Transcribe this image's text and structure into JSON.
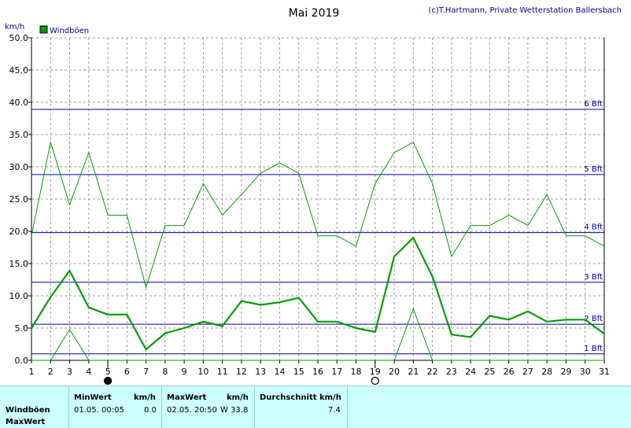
{
  "header": {
    "title": "Mai 2019",
    "credit": "(c)T.Hartmann, Private Wetterstation Ballersbach",
    "unit_label": "km/h"
  },
  "legend": {
    "label": "Windböen",
    "color": "#00a000"
  },
  "colors": {
    "series": "#00a000",
    "beaufort_lines": "#00009c",
    "grid": "#9c9c9c",
    "stats_bg": "#ccffff"
  },
  "chart_data": {
    "type": "line",
    "title": "Mai 2019",
    "ylabel": "km/h",
    "xlim": [
      1,
      31
    ],
    "ylim": [
      0,
      50
    ],
    "x_ticks": [
      1,
      2,
      3,
      4,
      5,
      6,
      7,
      8,
      9,
      10,
      11,
      12,
      13,
      14,
      15,
      16,
      17,
      18,
      19,
      20,
      21,
      22,
      23,
      24,
      25,
      26,
      27,
      28,
      29,
      30,
      31
    ],
    "y_ticks": [
      "0.0",
      "5.0",
      "10.0",
      "15.0",
      "20.0",
      "25.0",
      "30.0",
      "35.0",
      "40.0",
      "45.0",
      "50.0"
    ],
    "grid": true,
    "legend_position": "top-left",
    "series": [
      {
        "name": "Windböen",
        "role": "max",
        "x": [
          1,
          2,
          3,
          4,
          5,
          6,
          7,
          8,
          9,
          10,
          11,
          12,
          13,
          14,
          15,
          16,
          17,
          18,
          19,
          20,
          21,
          22,
          23,
          24,
          25,
          26,
          27,
          28,
          29,
          30,
          31
        ],
        "values": [
          19.3,
          33.8,
          24.1,
          32.2,
          22.5,
          22.5,
          11.3,
          20.9,
          20.9,
          27.4,
          22.5,
          25.7,
          29.0,
          30.6,
          29.0,
          19.3,
          19.3,
          17.7,
          27.4,
          32.2,
          33.8,
          27.4,
          16.1,
          20.9,
          20.9,
          22.5,
          20.9,
          25.7,
          19.3,
          19.3,
          17.7
        ]
      },
      {
        "name": "",
        "role": "average",
        "x": [
          1,
          2,
          3,
          4,
          5,
          6,
          7,
          8,
          9,
          10,
          11,
          12,
          13,
          14,
          15,
          16,
          17,
          18,
          19,
          20,
          21,
          22,
          23,
          24,
          25,
          26,
          27,
          28,
          29,
          30,
          31
        ],
        "values": [
          5.0,
          9.8,
          13.9,
          8.2,
          7.1,
          7.1,
          1.7,
          4.2,
          5.0,
          6.0,
          5.3,
          9.2,
          8.6,
          9.0,
          9.7,
          6.0,
          6.0,
          5.0,
          4.4,
          16.1,
          19.0,
          13.0,
          4.0,
          3.6,
          6.9,
          6.3,
          7.6,
          6.0,
          6.3,
          6.3,
          4.1
        ]
      },
      {
        "name": "",
        "role": "min",
        "x": [
          1,
          2,
          3,
          4,
          5,
          6,
          7,
          8,
          9,
          10,
          11,
          12,
          13,
          14,
          15,
          16,
          17,
          18,
          19,
          20,
          21,
          22,
          23,
          24,
          25,
          26,
          27,
          28,
          29,
          30,
          31
        ],
        "values": [
          0,
          0,
          4.8,
          0,
          0,
          0,
          0,
          0,
          0,
          0,
          0,
          0,
          0,
          0,
          0,
          0,
          0,
          0,
          0,
          0,
          8.0,
          0,
          0,
          0,
          0,
          0,
          0,
          0,
          0,
          0,
          0
        ]
      }
    ],
    "reference_lines": [
      {
        "label": "1 Bft",
        "value": 1.0
      },
      {
        "label": "2 Bft",
        "value": 5.6
      },
      {
        "label": "3 Bft",
        "value": 12.1
      },
      {
        "label": "4 Bft",
        "value": 19.8
      },
      {
        "label": "5 Bft",
        "value": 28.8
      },
      {
        "label": "6 Bft",
        "value": 38.9
      }
    ],
    "moon_phases": [
      {
        "day": 5,
        "phase": "new-moon"
      },
      {
        "day": 19,
        "phase": "full-moon"
      }
    ]
  },
  "stats": {
    "row_labels": [
      "Windböen",
      "MaxWert"
    ],
    "min": {
      "header": "MinWert",
      "unit": "km/h",
      "datetime": "01.05.  00:05",
      "value": "0.0"
    },
    "max": {
      "header": "MaxWert",
      "unit": "km/h",
      "datetime": "02.05.  20:50",
      "value": "W 33.8"
    },
    "avg": {
      "header": "Durchschnitt km/h",
      "value": "7.4"
    }
  }
}
